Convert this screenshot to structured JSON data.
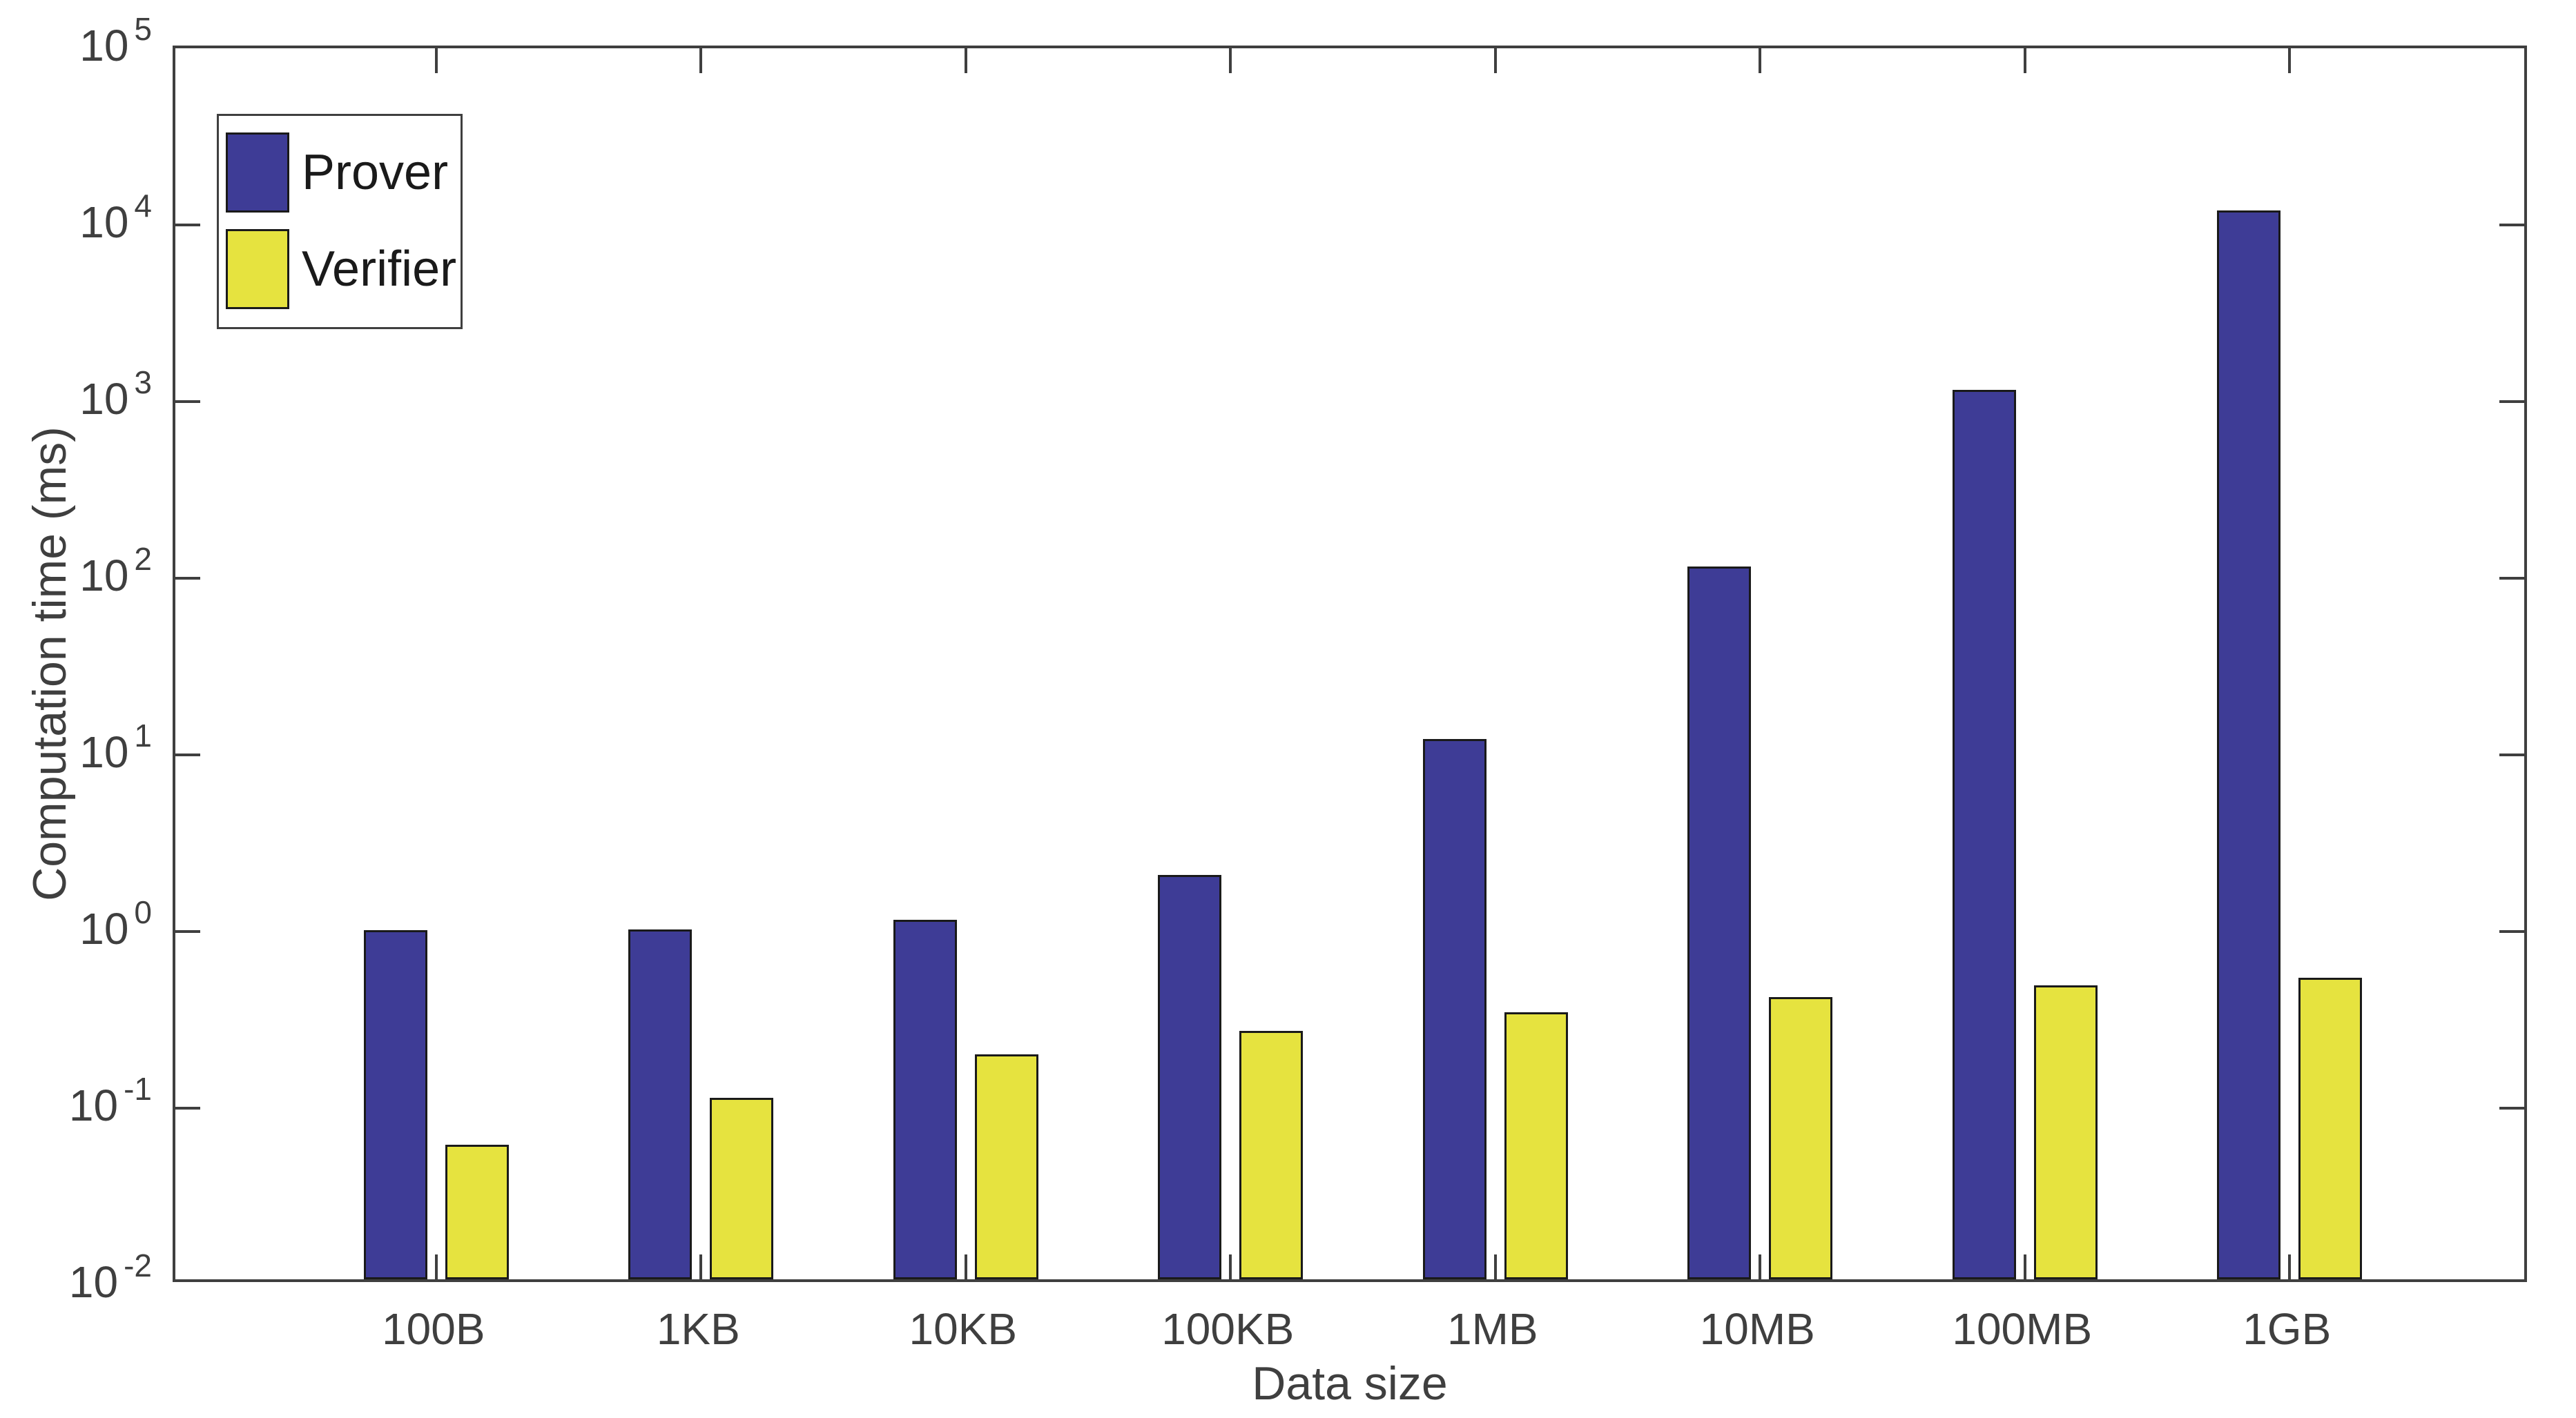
{
  "figure": {
    "background": "#ffffff",
    "axis_color": "#3f3f3f",
    "text_color": "#3f3f3f",
    "bar_edge_color": "#1a1a1a"
  },
  "chart_data": {
    "type": "bar",
    "title": "",
    "xlabel": "Data size",
    "ylabel": "Computation time (ms)",
    "categories": [
      "100B",
      "1KB",
      "10KB",
      "100KB",
      "1MB",
      "10MB",
      "100MB",
      "1GB"
    ],
    "series": [
      {
        "name": "Prover",
        "color": "#3e3c96",
        "values": [
          0.95,
          0.96,
          1.08,
          1.95,
          11.5,
          108,
          1085,
          11200
        ]
      },
      {
        "name": "Verifier",
        "color": "#e6e33f",
        "values": [
          0.058,
          0.107,
          0.187,
          0.255,
          0.325,
          0.396,
          0.46,
          0.51
        ]
      }
    ],
    "y_scale": "log",
    "ylim": [
      0.01,
      100000
    ],
    "y_tick_base": "10",
    "y_tick_exponents": [
      "5",
      "4",
      "3",
      "2",
      "1",
      "0",
      "-1",
      "-2"
    ],
    "grid": false,
    "legend_position": "top-left"
  }
}
